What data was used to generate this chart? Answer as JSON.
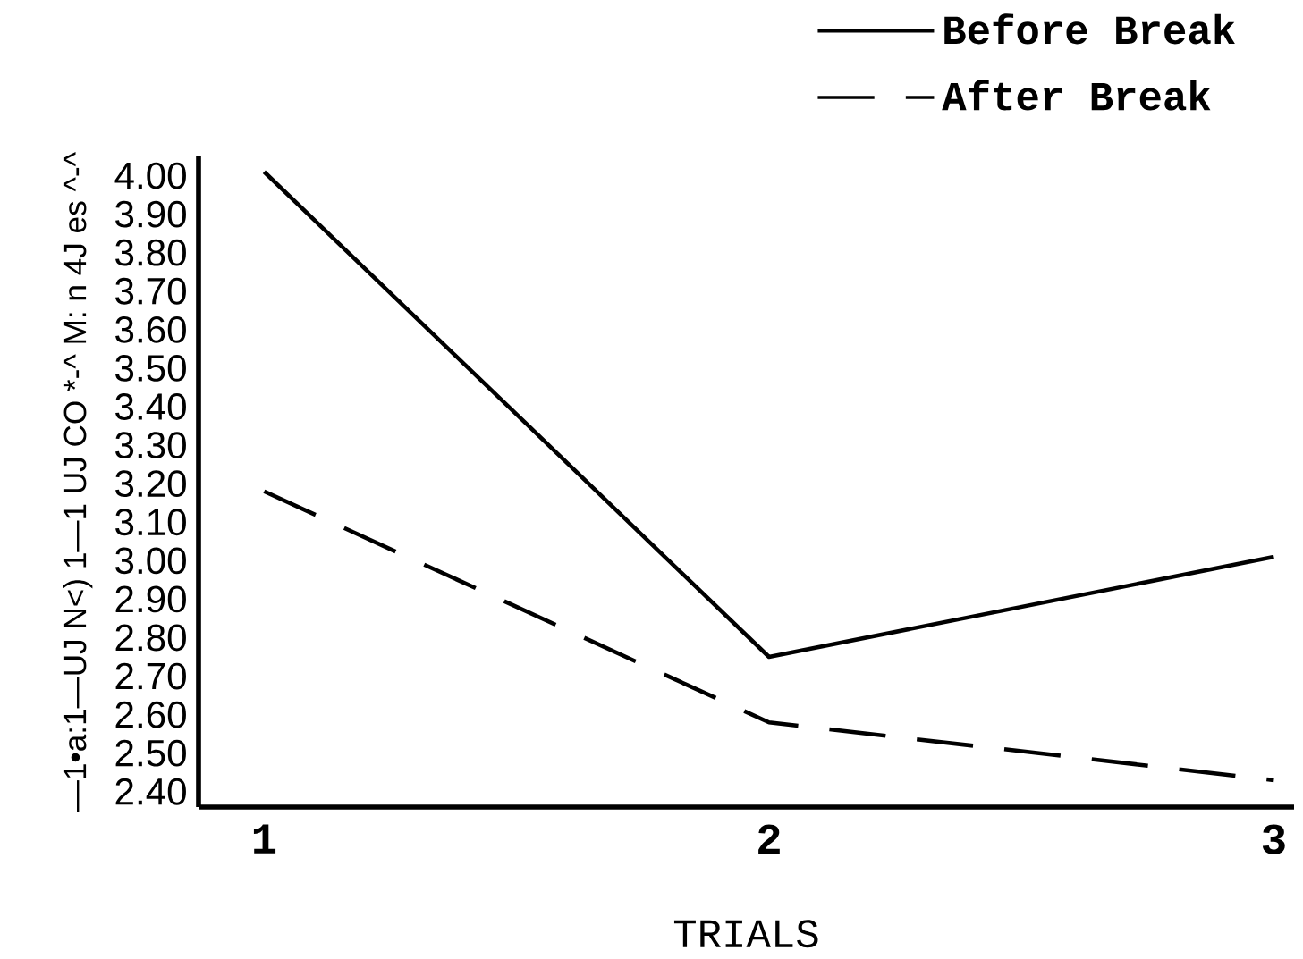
{
  "chart_data": {
    "type": "line",
    "xlabel": "TRIALS",
    "ylabel": "—1•a:1—UJ N<) 1—1 UJ CO *-^ M: n 4J es ^-^",
    "x": [
      1,
      2,
      3
    ],
    "xlim": [
      0.87,
      3.04
    ],
    "xticks": [
      1,
      2,
      3
    ],
    "ylim": [
      2.36,
      4.05
    ],
    "yticks": [
      {
        "value": 2.4,
        "label": "2.40"
      },
      {
        "value": 2.5,
        "label": "2.50"
      },
      {
        "value": 2.6,
        "label": "2.60"
      },
      {
        "value": 2.7,
        "label": "2.70"
      },
      {
        "value": 2.8,
        "label": "2.80"
      },
      {
        "value": 2.9,
        "label": "2.90"
      },
      {
        "value": 3.0,
        "label": "3.00"
      },
      {
        "value": 3.1,
        "label": "3.10"
      },
      {
        "value": 3.2,
        "label": "3.20"
      },
      {
        "value": 3.3,
        "label": "3.30"
      },
      {
        "value": 3.4,
        "label": "3.40"
      },
      {
        "value": 3.5,
        "label": "3.50"
      },
      {
        "value": 3.6,
        "label": "3.60"
      },
      {
        "value": 3.7,
        "label": "3.70"
      },
      {
        "value": 3.8,
        "label": "3.80"
      },
      {
        "value": 3.9,
        "label": "3.90"
      },
      {
        "value": 4.0,
        "label": "4.00"
      }
    ],
    "legend": "top right",
    "marker": "none",
    "series": [
      {
        "name": "Before Break",
        "color": "#000000",
        "line_style": "solid",
        "values": [
          4.01,
          2.75,
          3.01
        ]
      },
      {
        "name": "After Break",
        "color": "#000000",
        "line_style": "dashed",
        "values": [
          3.18,
          2.58,
          2.43
        ]
      }
    ]
  }
}
